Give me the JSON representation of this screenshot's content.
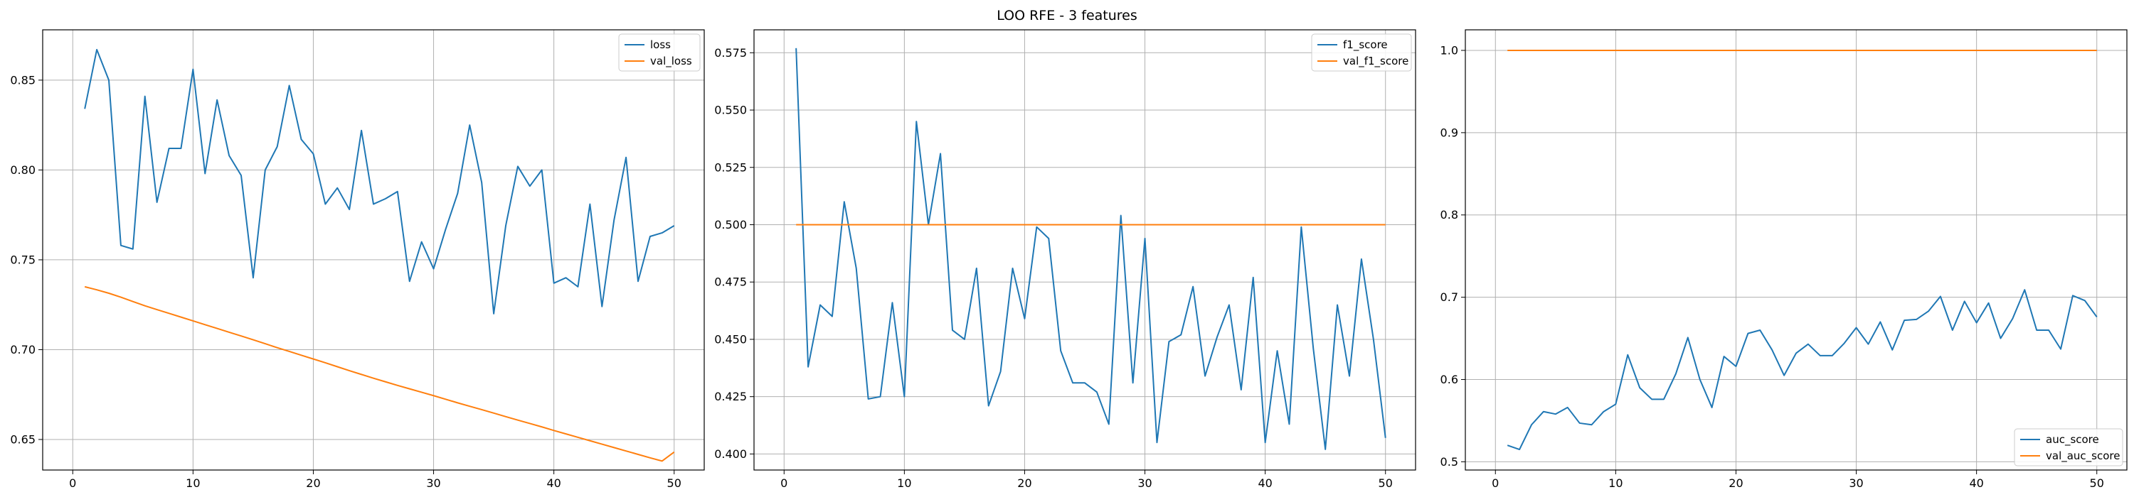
{
  "figure": {
    "title": "LOO RFE - 3 features"
  },
  "chart_data": [
    {
      "type": "line",
      "title": "",
      "xlabel": "",
      "ylabel": "",
      "xlim": [
        -2.5,
        52.5
      ],
      "ylim": [
        0.633,
        0.878
      ],
      "xticks": [
        0,
        10,
        20,
        30,
        40,
        50
      ],
      "yticks": [
        0.65,
        0.7,
        0.75,
        0.8,
        0.85
      ],
      "ytick_labels": [
        "0.65",
        "0.70",
        "0.75",
        "0.80",
        "0.85"
      ],
      "grid": true,
      "legend_loc": "upper right",
      "x": [
        1,
        2,
        3,
        4,
        5,
        6,
        7,
        8,
        9,
        10,
        11,
        12,
        13,
        14,
        15,
        16,
        17,
        18,
        19,
        20,
        21,
        22,
        23,
        24,
        25,
        26,
        27,
        28,
        29,
        30,
        31,
        32,
        33,
        34,
        35,
        36,
        37,
        38,
        39,
        40,
        41,
        42,
        43,
        44,
        45,
        46,
        47,
        48,
        49,
        50
      ],
      "series": [
        {
          "name": "loss",
          "color": "#1f77b4",
          "values": [
            0.834,
            0.867,
            0.85,
            0.758,
            0.756,
            0.841,
            0.782,
            0.812,
            0.812,
            0.856,
            0.798,
            0.839,
            0.808,
            0.797,
            0.74,
            0.8,
            0.813,
            0.847,
            0.817,
            0.809,
            0.781,
            0.79,
            0.778,
            0.822,
            0.781,
            0.784,
            0.788,
            0.738,
            0.76,
            0.745,
            0.767,
            0.787,
            0.825,
            0.793,
            0.72,
            0.769,
            0.802,
            0.791,
            0.8,
            0.737,
            0.74,
            0.735,
            0.781,
            0.724,
            0.772,
            0.807,
            0.738,
            0.763,
            0.765,
            0.769
          ]
        },
        {
          "name": "val_loss",
          "color": "#ff7f0e",
          "values": [
            0.735,
            0.7333,
            0.7314,
            0.7292,
            0.7268,
            0.7244,
            0.7223,
            0.7202,
            0.7181,
            0.716,
            0.7139,
            0.7118,
            0.7097,
            0.7076,
            0.7055,
            0.7033,
            0.7011,
            0.699,
            0.6969,
            0.6948,
            0.6927,
            0.6905,
            0.6883,
            0.6862,
            0.6841,
            0.6821,
            0.6801,
            0.6782,
            0.6763,
            0.6744,
            0.6724,
            0.6704,
            0.6685,
            0.6666,
            0.6647,
            0.6627,
            0.6608,
            0.6589,
            0.657,
            0.655,
            0.6531,
            0.6512,
            0.6493,
            0.6474,
            0.6455,
            0.6436,
            0.6417,
            0.6398,
            0.638,
            0.643
          ]
        }
      ]
    },
    {
      "type": "line",
      "title": "",
      "xlabel": "",
      "ylabel": "",
      "xlim": [
        -2.5,
        52.5
      ],
      "ylim": [
        0.393,
        0.585
      ],
      "xticks": [
        0,
        10,
        20,
        30,
        40,
        50
      ],
      "yticks": [
        0.4,
        0.425,
        0.45,
        0.475,
        0.5,
        0.525,
        0.55,
        0.575
      ],
      "ytick_labels": [
        "0.400",
        "0.425",
        "0.450",
        "0.475",
        "0.500",
        "0.525",
        "0.550",
        "0.575"
      ],
      "grid": true,
      "legend_loc": "upper right",
      "x": [
        1,
        2,
        3,
        4,
        5,
        6,
        7,
        8,
        9,
        10,
        11,
        12,
        13,
        14,
        15,
        16,
        17,
        18,
        19,
        20,
        21,
        22,
        23,
        24,
        25,
        26,
        27,
        28,
        29,
        30,
        31,
        32,
        33,
        34,
        35,
        36,
        37,
        38,
        39,
        40,
        41,
        42,
        43,
        44,
        45,
        46,
        47,
        48,
        49,
        50
      ],
      "series": [
        {
          "name": "f1_score",
          "color": "#1f77b4",
          "values": [
            0.577,
            0.438,
            0.465,
            0.46,
            0.51,
            0.481,
            0.424,
            0.425,
            0.466,
            0.425,
            0.545,
            0.5,
            0.531,
            0.454,
            0.45,
            0.481,
            0.421,
            0.436,
            0.481,
            0.459,
            0.499,
            0.494,
            0.445,
            0.431,
            0.431,
            0.427,
            0.413,
            0.504,
            0.431,
            0.494,
            0.405,
            0.449,
            0.452,
            0.473,
            0.434,
            0.451,
            0.465,
            0.428,
            0.477,
            0.405,
            0.445,
            0.413,
            0.499,
            0.446,
            0.402,
            0.465,
            0.434,
            0.485,
            0.45,
            0.407
          ]
        },
        {
          "name": "val_f1_score",
          "color": "#ff7f0e",
          "values": [
            0.5,
            0.5,
            0.5,
            0.5,
            0.5,
            0.5,
            0.5,
            0.5,
            0.5,
            0.5,
            0.5,
            0.5,
            0.5,
            0.5,
            0.5,
            0.5,
            0.5,
            0.5,
            0.5,
            0.5,
            0.5,
            0.5,
            0.5,
            0.5,
            0.5,
            0.5,
            0.5,
            0.5,
            0.5,
            0.5,
            0.5,
            0.5,
            0.5,
            0.5,
            0.5,
            0.5,
            0.5,
            0.5,
            0.5,
            0.5,
            0.5,
            0.5,
            0.5,
            0.5,
            0.5,
            0.5,
            0.5,
            0.5,
            0.5,
            0.5
          ]
        }
      ]
    },
    {
      "type": "line",
      "title": "",
      "xlabel": "",
      "ylabel": "",
      "xlim": [
        -2.5,
        52.5
      ],
      "ylim": [
        0.49,
        1.025
      ],
      "xticks": [
        0,
        10,
        20,
        30,
        40,
        50
      ],
      "yticks": [
        0.5,
        0.6,
        0.7,
        0.8,
        0.9,
        1.0
      ],
      "ytick_labels": [
        "0.5",
        "0.6",
        "0.7",
        "0.8",
        "0.9",
        "1.0"
      ],
      "grid": true,
      "legend_loc": "lower right",
      "x": [
        1,
        2,
        3,
        4,
        5,
        6,
        7,
        8,
        9,
        10,
        11,
        12,
        13,
        14,
        15,
        16,
        17,
        18,
        19,
        20,
        21,
        22,
        23,
        24,
        25,
        26,
        27,
        28,
        29,
        30,
        31,
        32,
        33,
        34,
        35,
        36,
        37,
        38,
        39,
        40,
        41,
        42,
        43,
        44,
        45,
        46,
        47,
        48,
        49,
        50
      ],
      "series": [
        {
          "name": "auc_score",
          "color": "#1f77b4",
          "values": [
            0.52,
            0.515,
            0.545,
            0.561,
            0.558,
            0.566,
            0.547,
            0.545,
            0.561,
            0.57,
            0.63,
            0.59,
            0.576,
            0.576,
            0.607,
            0.651,
            0.6,
            0.566,
            0.628,
            0.616,
            0.656,
            0.66,
            0.636,
            0.605,
            0.632,
            0.643,
            0.629,
            0.629,
            0.644,
            0.663,
            0.643,
            0.67,
            0.636,
            0.672,
            0.673,
            0.683,
            0.701,
            0.66,
            0.695,
            0.669,
            0.693,
            0.65,
            0.674,
            0.709,
            0.66,
            0.66,
            0.637,
            0.702,
            0.696,
            0.676
          ]
        },
        {
          "name": "val_auc_score",
          "color": "#ff7f0e",
          "values": [
            1.0,
            1.0,
            1.0,
            1.0,
            1.0,
            1.0,
            1.0,
            1.0,
            1.0,
            1.0,
            1.0,
            1.0,
            1.0,
            1.0,
            1.0,
            1.0,
            1.0,
            1.0,
            1.0,
            1.0,
            1.0,
            1.0,
            1.0,
            1.0,
            1.0,
            1.0,
            1.0,
            1.0,
            1.0,
            1.0,
            1.0,
            1.0,
            1.0,
            1.0,
            1.0,
            1.0,
            1.0,
            1.0,
            1.0,
            1.0,
            1.0,
            1.0,
            1.0,
            1.0,
            1.0,
            1.0,
            1.0,
            1.0,
            1.0,
            1.0
          ]
        }
      ]
    }
  ]
}
